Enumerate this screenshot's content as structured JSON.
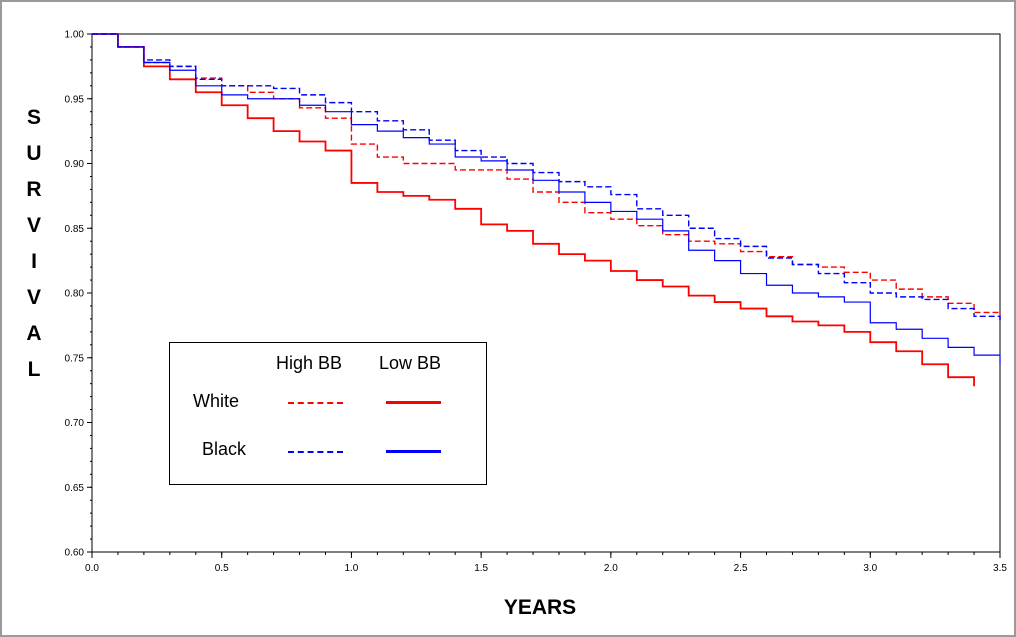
{
  "chart_data": {
    "type": "line",
    "xlabel": "YEARS",
    "ylabel": "SURVIVAL",
    "xlim": [
      0.0,
      3.5
    ],
    "ylim": [
      0.6,
      1.0
    ],
    "xticks": [
      "0.0",
      "0.5",
      "1.0",
      "1.5",
      "2.0",
      "2.5",
      "3.0",
      "3.5"
    ],
    "yticks": [
      "0.60",
      "0.65",
      "0.70",
      "0.75",
      "0.80",
      "0.85",
      "0.90",
      "0.95",
      "1.00"
    ],
    "grid": false,
    "legend": {
      "placement": "lower-left",
      "column_headers": [
        "High BB",
        "Low BB"
      ],
      "row_labels": [
        "White",
        "Black"
      ]
    },
    "series": [
      {
        "race": "White",
        "bb": "High BB",
        "color": "#ff0000",
        "dashed": true,
        "x": [
          0.0,
          0.1,
          0.2,
          0.3,
          0.4,
          0.5,
          0.6,
          0.7,
          0.8,
          0.9,
          1.0,
          1.1,
          1.2,
          1.3,
          1.4,
          1.5,
          1.6,
          1.7,
          1.8,
          1.9,
          2.0,
          2.1,
          2.2,
          2.3,
          2.4,
          2.5,
          2.6,
          2.7,
          2.8,
          2.9,
          3.0,
          3.1,
          3.2,
          3.3,
          3.4,
          3.5
        ],
        "y": [
          1.0,
          0.99,
          0.978,
          0.975,
          0.966,
          0.96,
          0.955,
          0.95,
          0.943,
          0.935,
          0.915,
          0.905,
          0.9,
          0.9,
          0.895,
          0.895,
          0.888,
          0.878,
          0.87,
          0.862,
          0.857,
          0.852,
          0.845,
          0.84,
          0.838,
          0.832,
          0.828,
          0.822,
          0.82,
          0.816,
          0.81,
          0.803,
          0.797,
          0.792,
          0.785,
          0.778
        ]
      },
      {
        "race": "White",
        "bb": "Low BB",
        "color": "#ff0000",
        "dashed": false,
        "x": [
          0.0,
          0.1,
          0.2,
          0.3,
          0.4,
          0.5,
          0.6,
          0.7,
          0.8,
          0.9,
          1.0,
          1.1,
          1.2,
          1.3,
          1.4,
          1.5,
          1.6,
          1.7,
          1.8,
          1.9,
          2.0,
          2.1,
          2.2,
          2.3,
          2.4,
          2.5,
          2.6,
          2.7,
          2.8,
          2.9,
          3.0,
          3.1,
          3.2,
          3.3,
          3.4
        ],
        "y": [
          1.0,
          0.99,
          0.975,
          0.965,
          0.955,
          0.945,
          0.935,
          0.925,
          0.917,
          0.91,
          0.885,
          0.878,
          0.875,
          0.872,
          0.865,
          0.853,
          0.848,
          0.838,
          0.83,
          0.825,
          0.817,
          0.81,
          0.805,
          0.798,
          0.793,
          0.788,
          0.782,
          0.778,
          0.775,
          0.77,
          0.762,
          0.755,
          0.745,
          0.735,
          0.728
        ]
      },
      {
        "race": "Black",
        "bb": "High BB",
        "color": "#0000ff",
        "dashed": true,
        "x": [
          0.0,
          0.1,
          0.2,
          0.3,
          0.4,
          0.5,
          0.6,
          0.7,
          0.8,
          0.9,
          1.0,
          1.1,
          1.2,
          1.3,
          1.4,
          1.5,
          1.6,
          1.7,
          1.8,
          1.9,
          2.0,
          2.1,
          2.2,
          2.3,
          2.4,
          2.5,
          2.6,
          2.7,
          2.8,
          2.9,
          3.0,
          3.1,
          3.2,
          3.3,
          3.4,
          3.5
        ],
        "y": [
          1.0,
          0.99,
          0.98,
          0.975,
          0.965,
          0.96,
          0.96,
          0.958,
          0.953,
          0.947,
          0.94,
          0.933,
          0.926,
          0.918,
          0.91,
          0.905,
          0.9,
          0.893,
          0.886,
          0.882,
          0.876,
          0.865,
          0.86,
          0.85,
          0.842,
          0.836,
          0.827,
          0.822,
          0.815,
          0.808,
          0.8,
          0.797,
          0.795,
          0.788,
          0.782,
          0.778
        ]
      },
      {
        "race": "Black",
        "bb": "Low BB",
        "color": "#0000ff",
        "dashed": false,
        "x": [
          0.0,
          0.1,
          0.2,
          0.3,
          0.4,
          0.5,
          0.6,
          0.7,
          0.8,
          0.9,
          1.0,
          1.1,
          1.2,
          1.3,
          1.4,
          1.5,
          1.6,
          1.7,
          1.8,
          1.9,
          2.0,
          2.1,
          2.2,
          2.3,
          2.4,
          2.5,
          2.6,
          2.7,
          2.8,
          2.9,
          3.0,
          3.1,
          3.2,
          3.3,
          3.4,
          3.5
        ],
        "y": [
          1.0,
          0.99,
          0.978,
          0.972,
          0.96,
          0.953,
          0.95,
          0.95,
          0.945,
          0.94,
          0.93,
          0.925,
          0.92,
          0.915,
          0.905,
          0.902,
          0.895,
          0.887,
          0.878,
          0.87,
          0.863,
          0.857,
          0.848,
          0.833,
          0.825,
          0.815,
          0.806,
          0.8,
          0.797,
          0.793,
          0.777,
          0.772,
          0.765,
          0.758,
          0.752,
          0.745
        ]
      }
    ]
  }
}
